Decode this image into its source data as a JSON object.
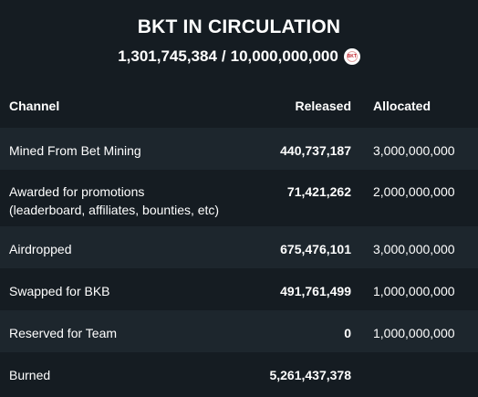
{
  "header": {
    "title": "BKT IN CIRCULATION",
    "circulating": "1,301,745,384",
    "separator": "/",
    "total": "10,000,000,000",
    "coin_label": "BKT"
  },
  "table": {
    "columns": {
      "channel": "Channel",
      "released": "Released",
      "allocated": "Allocated"
    },
    "rows": [
      {
        "channel": "Mined From Bet Mining",
        "channel_sub": "",
        "released": "440,737,187",
        "allocated": "3,000,000,000"
      },
      {
        "channel": "Awarded for promotions",
        "channel_sub": "(leaderboard, affiliates, bounties, etc)",
        "released": "71,421,262",
        "allocated": "2,000,000,000"
      },
      {
        "channel": "Airdropped",
        "channel_sub": "",
        "released": "675,476,101",
        "allocated": "3,000,000,000"
      },
      {
        "channel": "Swapped for BKB",
        "channel_sub": "",
        "released": "491,761,499",
        "allocated": "1,000,000,000"
      },
      {
        "channel": "Reserved for Team",
        "channel_sub": "",
        "released": "0",
        "allocated": "1,000,000,000"
      },
      {
        "channel": "Burned",
        "channel_sub": "",
        "released": "5,261,437,378",
        "allocated": ""
      }
    ]
  },
  "colors": {
    "background": "#151c22",
    "row_alt": "#1d262d",
    "text": "#ffffff",
    "coin_red": "#c0202a"
  }
}
